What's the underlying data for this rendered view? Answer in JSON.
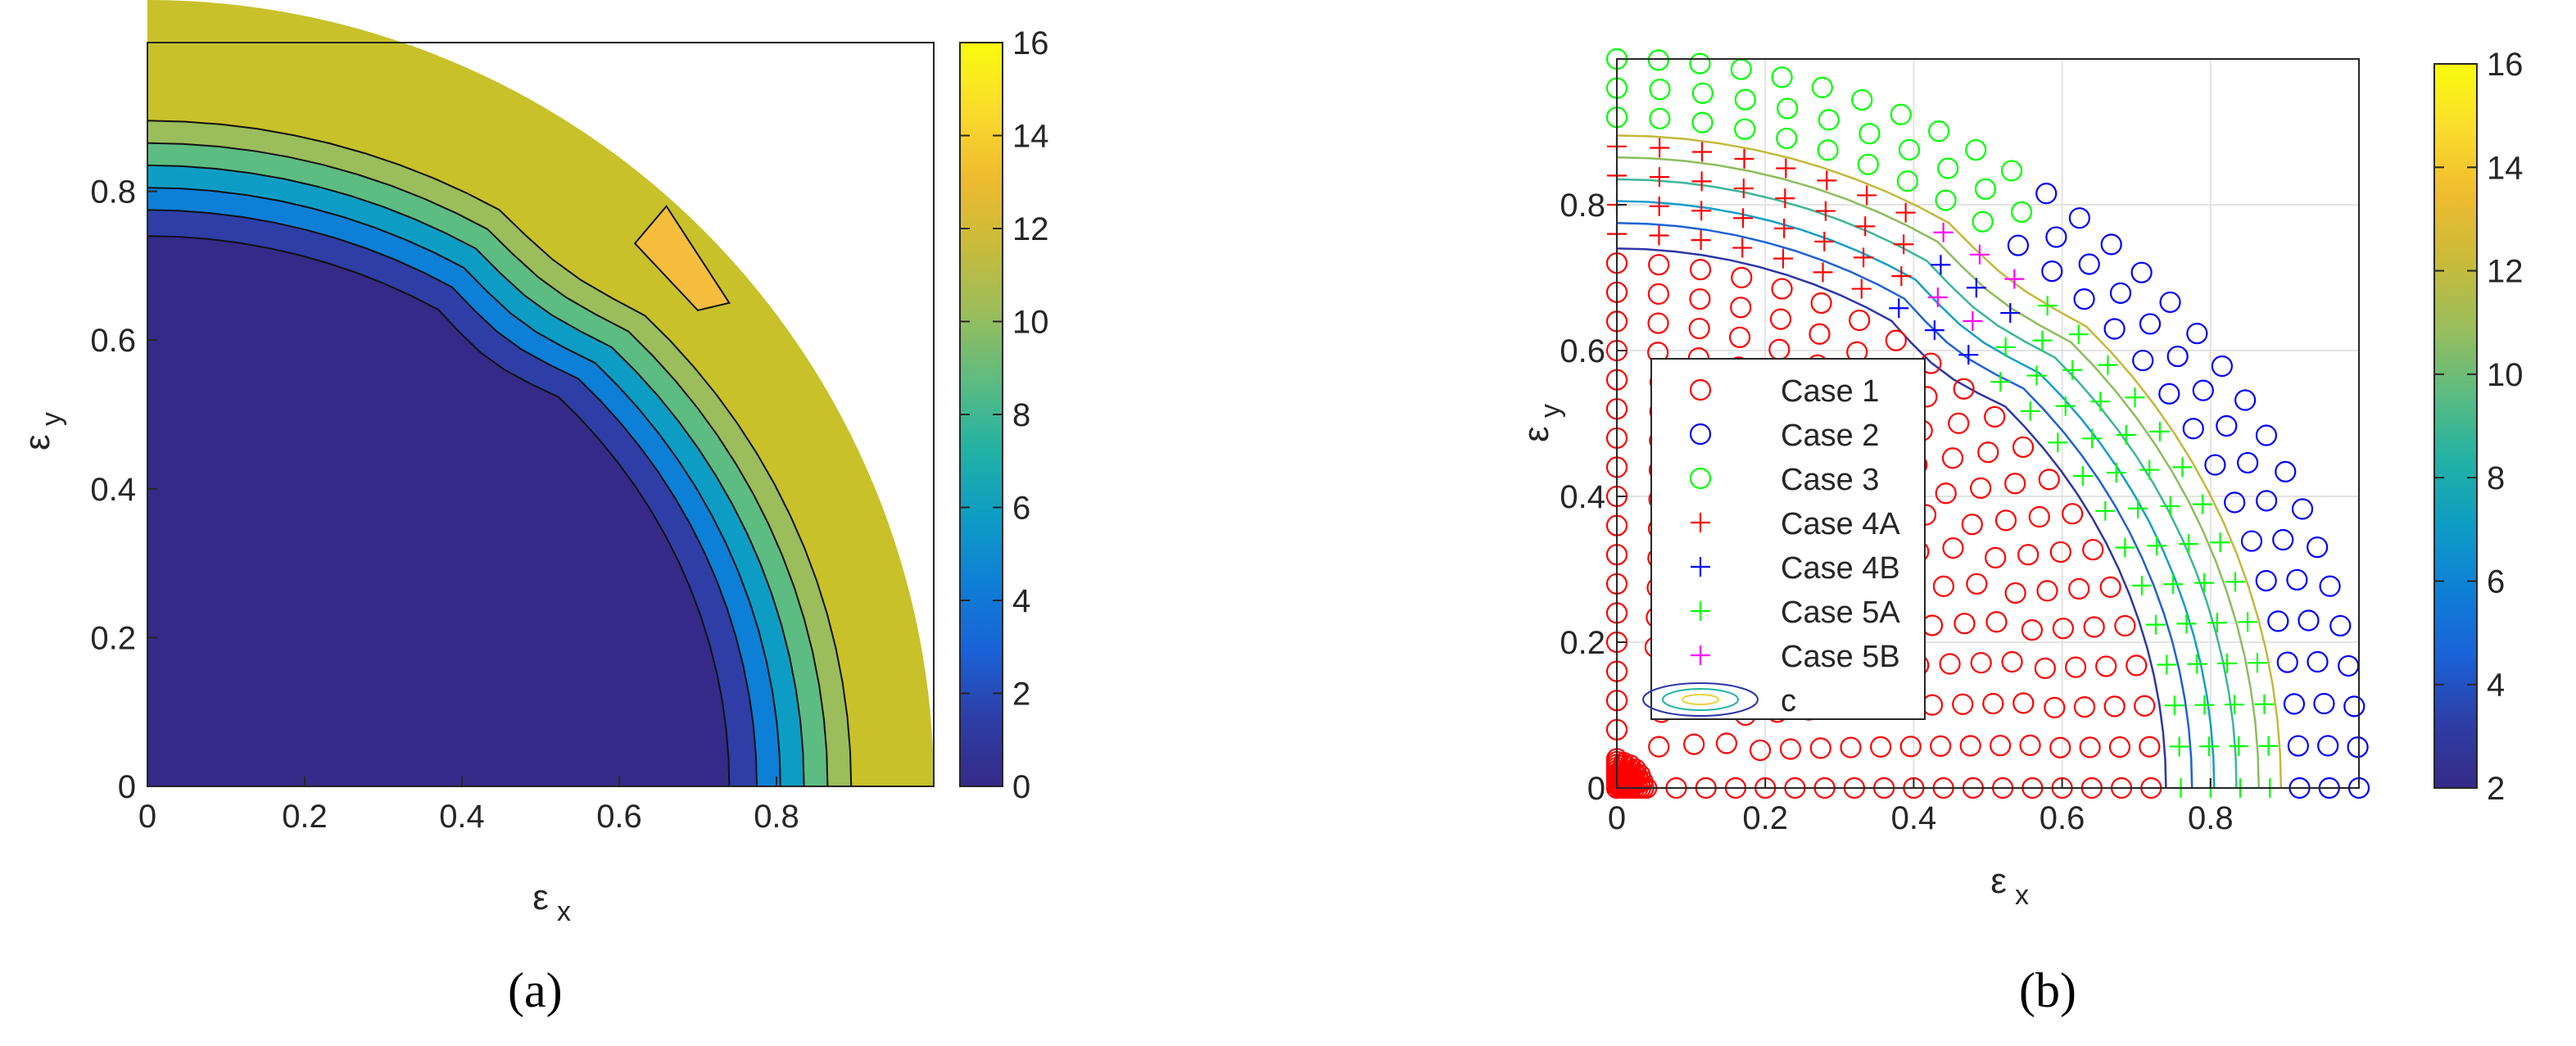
{
  "panels": [
    {
      "caption": "(a)",
      "chart_data": {
        "type": "filled-contour",
        "xlabel": "ε",
        "xlabel_sub": "x",
        "ylabel": "ε",
        "ylabel_sub": "y",
        "xlim": [
          0,
          1
        ],
        "ylim": [
          0,
          1
        ],
        "xticks": [
          0,
          0.2,
          0.4,
          0.6,
          0.8
        ],
        "yticks": [
          0,
          0.2,
          0.4,
          0.6,
          0.8
        ],
        "region_radius": 1.0,
        "contour_levels": [
          0,
          2,
          4,
          6,
          8,
          10,
          12
        ],
        "contour_radii": [
          0.74,
          0.775,
          0.805,
          0.835,
          0.865,
          0.895
        ],
        "outer_value": 12,
        "notch_value": 14,
        "colorbar": {
          "min": 0,
          "max": 16,
          "ticks": [
            0,
            2,
            4,
            6,
            8,
            10,
            12,
            14,
            16
          ],
          "colormap": "parula"
        },
        "grid": false
      }
    },
    {
      "caption": "(b)",
      "chart_data": {
        "type": "scatter",
        "xlabel": "ε",
        "xlabel_sub": "x",
        "ylabel": "ε",
        "ylabel_sub": "y",
        "xlim": [
          0,
          1
        ],
        "ylim": [
          0,
          1
        ],
        "xticks": [
          0,
          0.2,
          0.4,
          0.6,
          0.8
        ],
        "yticks": [
          0,
          0.2,
          0.4,
          0.6,
          0.8
        ],
        "grid": true,
        "legend_position": "center-left",
        "series": [
          {
            "name": "Case 1",
            "marker": "circle",
            "color": "#ff0000",
            "r_range": [
              0,
              0.75
            ]
          },
          {
            "name": "Case 2",
            "marker": "circle",
            "color": "#0000ff",
            "r_range": [
              0.92,
              1.0
            ]
          },
          {
            "name": "Case 3",
            "marker": "circle",
            "color": "#00ff00",
            "r_range": [
              0.92,
              1.0
            ]
          },
          {
            "name": "Case 4A",
            "marker": "plus",
            "color": "#ff0000",
            "r_range": [
              0.75,
              0.89
            ]
          },
          {
            "name": "Case 4B",
            "marker": "plus",
            "color": "#0000ff",
            "r_range": [
              0.75,
              0.89
            ]
          },
          {
            "name": "Case 5A",
            "marker": "plus",
            "color": "#00ff00",
            "r_range": [
              0.75,
              0.89
            ]
          },
          {
            "name": "Case 5B",
            "marker": "plus",
            "color": "#ff00ff",
            "r_range": [
              0.75,
              0.89
            ]
          },
          {
            "name": "c",
            "marker": "contour-lines",
            "color": "#1f3fa8"
          }
        ],
        "contour_radii": [
          0.74,
          0.775,
          0.805,
          0.835,
          0.865,
          0.895
        ],
        "colorbar": {
          "min": 2,
          "max": 16,
          "ticks": [
            2,
            4,
            6,
            8,
            10,
            12,
            14,
            16
          ],
          "colormap": "parula"
        }
      }
    }
  ],
  "colors": {
    "parula": [
      "#352a87",
      "#2e3ea6",
      "#1a62d8",
      "#0e7fd6",
      "#0d9dc4",
      "#23b2a3",
      "#5dbc81",
      "#9bbd5b",
      "#c8bb3a",
      "#efbb2f",
      "#fadc2c",
      "#f9fb0e"
    ],
    "outer_fill": "#c8c12a",
    "notch_fill": "#f5be3c"
  }
}
